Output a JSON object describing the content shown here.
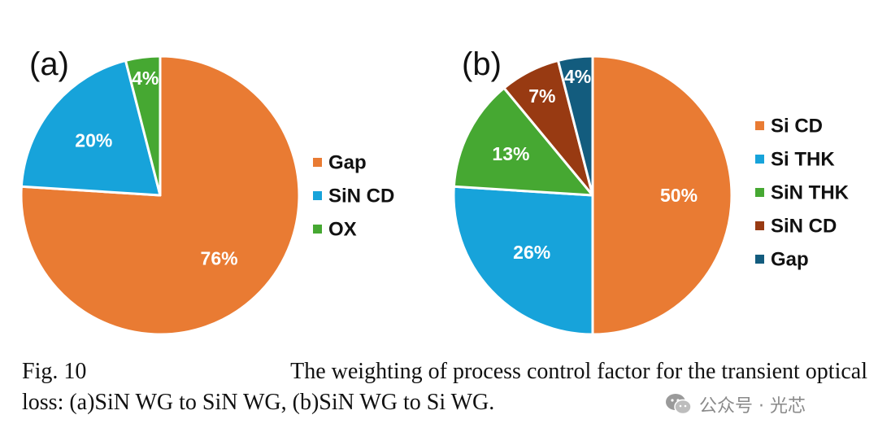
{
  "chart_data": [
    {
      "type": "pie",
      "panel_label": "(a)",
      "title": "",
      "start_angle_deg": 0,
      "direction": "clockwise",
      "legend_position": "right",
      "slices": [
        {
          "label": "Gap",
          "value": 76,
          "value_label": "76%",
          "color": "#E97B33"
        },
        {
          "label": "SiN CD",
          "value": 20,
          "value_label": "20%",
          "color": "#17A3DA"
        },
        {
          "label": "OX",
          "value": 4,
          "value_label": "4%",
          "color": "#46A832"
        }
      ]
    },
    {
      "type": "pie",
      "panel_label": "(b)",
      "title": "",
      "start_angle_deg": 0,
      "direction": "clockwise",
      "legend_position": "right",
      "slices": [
        {
          "label": "Si CD",
          "value": 50,
          "value_label": "50%",
          "color": "#E97B33"
        },
        {
          "label": "Si THK",
          "value": 26,
          "value_label": "26%",
          "color": "#17A3DA"
        },
        {
          "label": "SiN THK",
          "value": 13,
          "value_label": "13%",
          "color": "#46A832"
        },
        {
          "label": "SiN CD",
          "value": 7,
          "value_label": "7%",
          "color": "#983A12"
        },
        {
          "label": "Gap",
          "value": 4,
          "value_label": "4%",
          "color": "#135C7E"
        }
      ]
    }
  ],
  "caption": {
    "fig_number": "Fig. 10",
    "line1_text": "The weighting of process control factor for the transient optical",
    "line2_text": "loss: (a)SiN WG to SiN WG, (b)SiN WG to Si WG."
  },
  "watermark": {
    "text": "公众号 · 光芯",
    "icon": "wechat-icon"
  }
}
